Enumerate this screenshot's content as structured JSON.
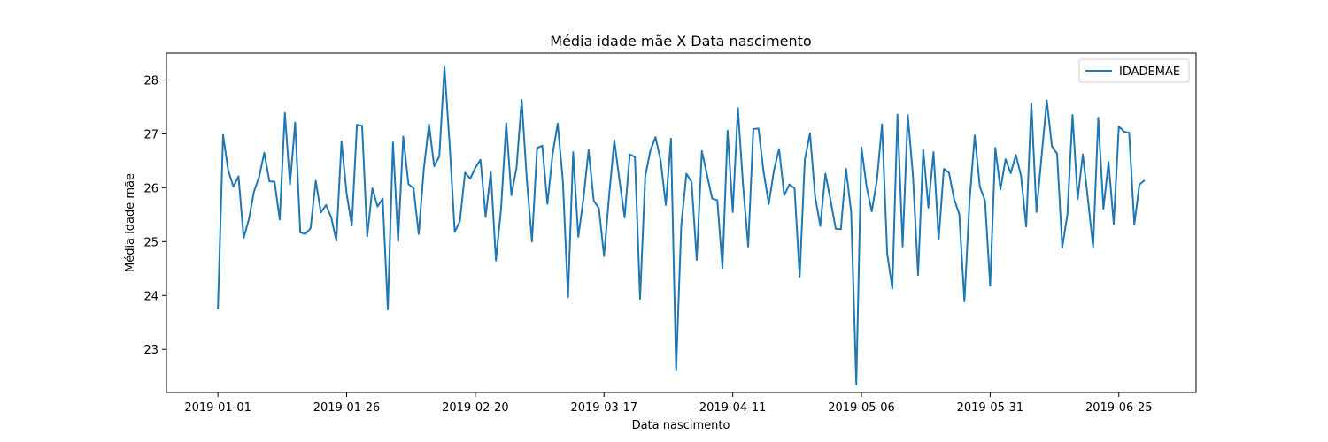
{
  "chart_data": {
    "type": "line",
    "title": "Média idade mãe X Data nascimento",
    "xlabel": "Data nascimento",
    "ylabel": "Média idade mãe",
    "x_start": "2019-01-01",
    "x_end": "2019-07-01",
    "xlim": [
      "2018-12-22",
      "2019-07-10"
    ],
    "ylim": [
      22.2,
      28.5
    ],
    "x_ticks": [
      "2019-01-01",
      "2019-01-26",
      "2019-02-20",
      "2019-03-17",
      "2019-04-11",
      "2019-05-06",
      "2019-05-31",
      "2019-06-25"
    ],
    "y_ticks": [
      23,
      24,
      25,
      26,
      27,
      28
    ],
    "grid": false,
    "legend_position": "top-right",
    "color": "#1f77b4",
    "series": [
      {
        "name": "IDADEMAE",
        "values": [
          23.75,
          26.98,
          26.32,
          26.02,
          26.21,
          25.07,
          25.41,
          25.93,
          26.2,
          26.65,
          26.12,
          26.11,
          25.41,
          27.39,
          26.06,
          27.21,
          25.17,
          25.14,
          25.25,
          26.13,
          25.54,
          25.68,
          25.45,
          25.02,
          26.86,
          25.89,
          25.3,
          27.17,
          27.15,
          25.1,
          25.99,
          25.65,
          25.8,
          23.74,
          26.84,
          25.01,
          26.95,
          26.07,
          25.99,
          25.14,
          26.36,
          27.18,
          26.4,
          26.58,
          28.24,
          26.81,
          25.18,
          25.38,
          26.28,
          26.17,
          26.37,
          26.52,
          25.46,
          26.29,
          24.65,
          25.62,
          27.2,
          25.86,
          26.37,
          27.63,
          26.15,
          25.0,
          26.74,
          26.78,
          25.7,
          26.62,
          27.19,
          26.13,
          23.97,
          26.66,
          25.09,
          25.8,
          26.7,
          25.76,
          25.62,
          24.73,
          25.87,
          26.88,
          26.14,
          25.45,
          26.62,
          26.57,
          23.94,
          26.21,
          26.69,
          26.94,
          26.5,
          25.68,
          26.91,
          22.61,
          25.3,
          26.26,
          26.11,
          24.66,
          26.68,
          26.24,
          25.8,
          25.77,
          24.51,
          27.06,
          25.55,
          27.48,
          26.05,
          24.91,
          27.09,
          27.1,
          26.29,
          25.7,
          26.32,
          26.72,
          25.86,
          26.06,
          25.99,
          24.35,
          26.52,
          27.01,
          25.84,
          25.29,
          26.26,
          25.77,
          25.24,
          25.23,
          26.35,
          25.55,
          22.35,
          26.75,
          26.02,
          25.56,
          26.13,
          27.18,
          24.78,
          24.13,
          27.36,
          24.91,
          27.35,
          26.23,
          24.38,
          26.71,
          25.63,
          26.66,
          25.04,
          26.35,
          26.28,
          25.79,
          25.51,
          23.89,
          25.76,
          26.97,
          26.02,
          25.76,
          24.18,
          26.74,
          25.97,
          26.53,
          26.27,
          26.61,
          26.22,
          25.28,
          27.56,
          25.55,
          26.6,
          27.62,
          26.77,
          26.63,
          24.89,
          25.5,
          27.35,
          25.79,
          26.62,
          25.78,
          24.9,
          27.3,
          25.61,
          26.48,
          25.33,
          27.14,
          27.04,
          27.02,
          25.32,
          26.06,
          26.14
        ]
      }
    ]
  }
}
